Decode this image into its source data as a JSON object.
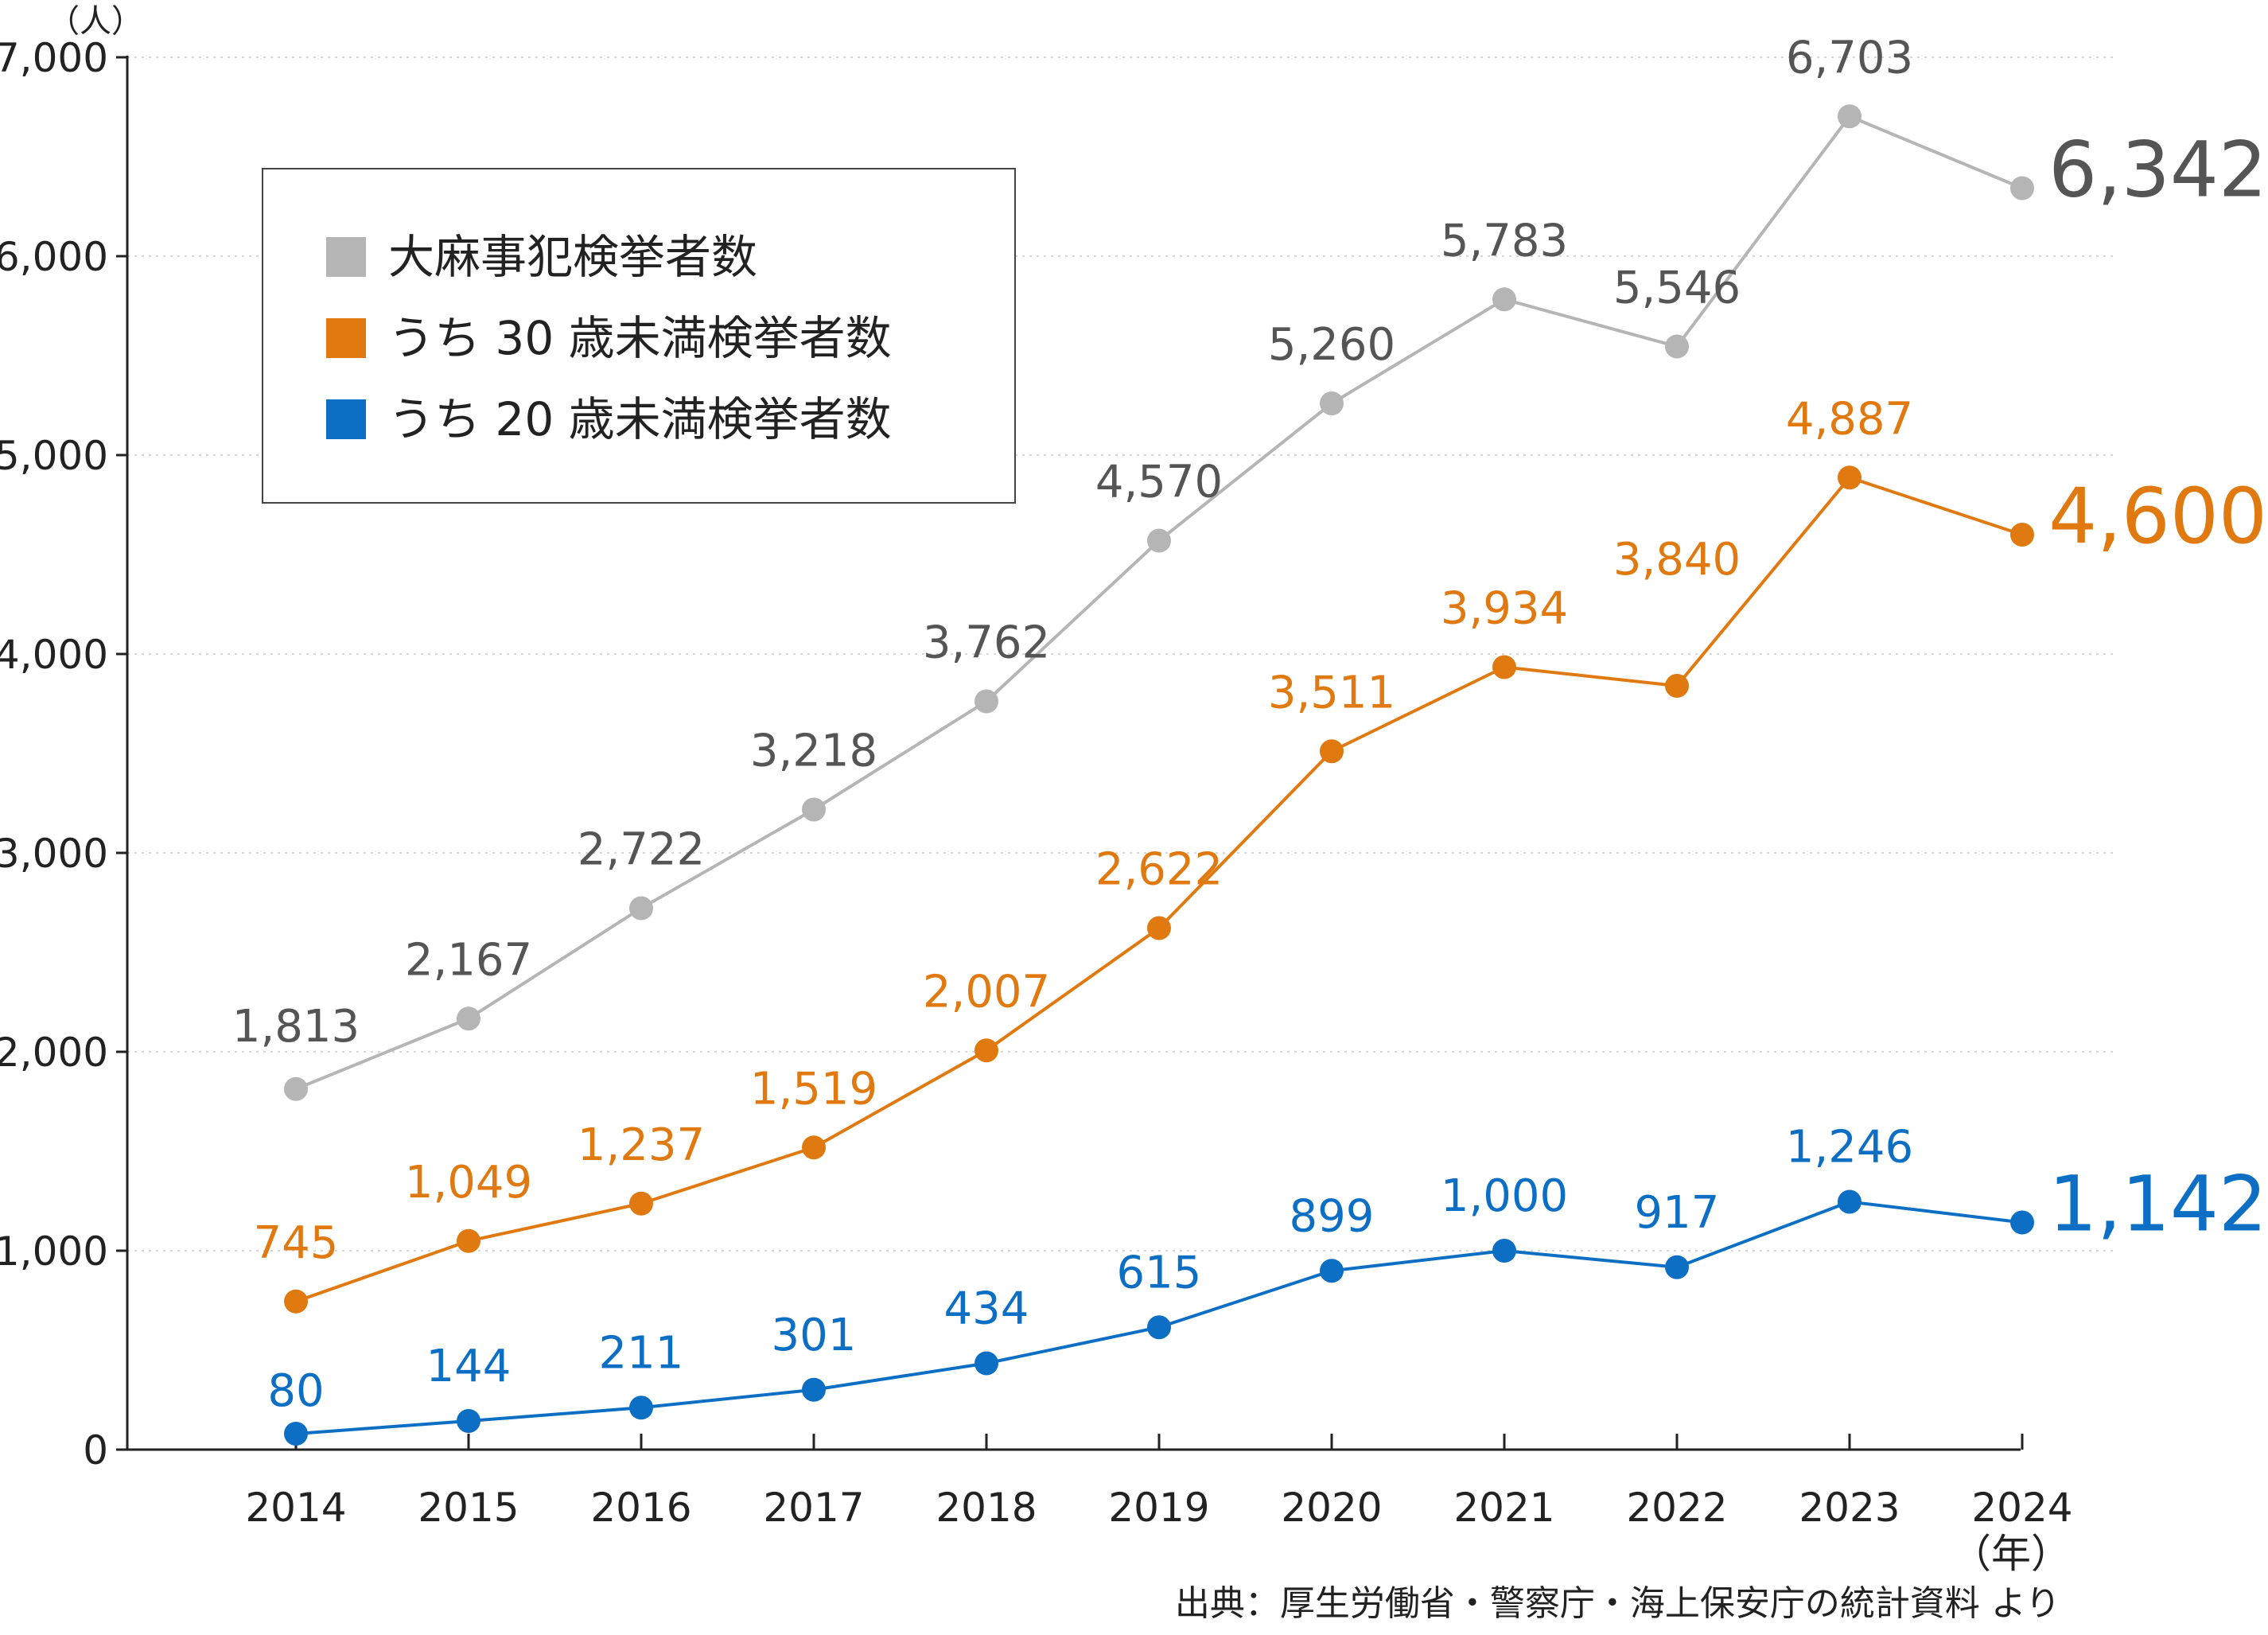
{
  "chart_data": {
    "type": "line",
    "y_unit_label": "（人）",
    "x_unit_label": "（年）",
    "source": "出典：厚生労働省・警察庁・海上保安庁の統計資料 より",
    "ylim": [
      0,
      7000
    ],
    "y_ticks": [
      0,
      1000,
      2000,
      3000,
      4000,
      5000,
      6000,
      7000
    ],
    "y_tick_labels": [
      "0",
      "1,000",
      "2,000",
      "3,000",
      "4,000",
      "5,000",
      "6,000",
      "7,000"
    ],
    "grid": true,
    "legend_position": "top-left",
    "categories": [
      "2014",
      "2015",
      "2016",
      "2017",
      "2018",
      "2019",
      "2020",
      "2021",
      "2022",
      "2023",
      "2024"
    ],
    "series": [
      {
        "name": "大麻事犯検挙者数",
        "color": "#b5b5b5",
        "label_color": "#555555",
        "values": [
          1813,
          2167,
          2722,
          3218,
          3762,
          4570,
          5260,
          5783,
          5546,
          6703,
          6342
        ],
        "labels": [
          "1,813",
          "2,167",
          "2,722",
          "3,218",
          "3,762",
          "4,570",
          "5,260",
          "5,783",
          "5,546",
          "6,703",
          "6,342"
        ]
      },
      {
        "name": "うち 30 歳未満検挙者数",
        "color": "#e07a10",
        "label_color": "#e07a10",
        "values": [
          745,
          1049,
          1237,
          1519,
          2007,
          2622,
          3511,
          3934,
          3840,
          4887,
          4600
        ],
        "labels": [
          "745",
          "1,049",
          "1,237",
          "1,519",
          "2,007",
          "2,622",
          "3,511",
          "3,934",
          "3,840",
          "4,887",
          "4,600"
        ]
      },
      {
        "name": "うち 20 歳未満検挙者数",
        "color": "#0d6fc4",
        "label_color": "#0d6fc4",
        "values": [
          80,
          144,
          211,
          301,
          434,
          615,
          899,
          1000,
          917,
          1246,
          1142
        ],
        "labels": [
          "80",
          "144",
          "211",
          "301",
          "434",
          "615",
          "899",
          "1,000",
          "917",
          "1,246",
          "1,142"
        ]
      }
    ]
  }
}
